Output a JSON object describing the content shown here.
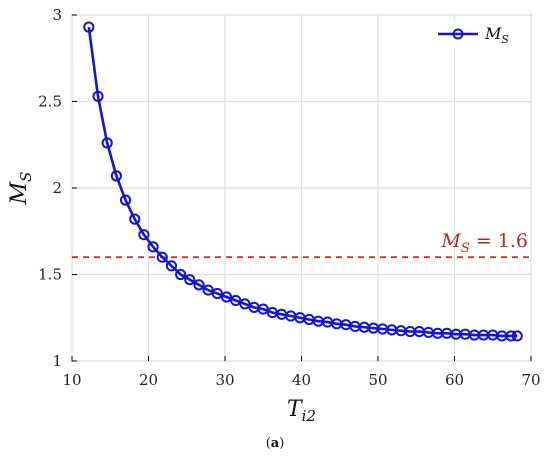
{
  "chart_data": {
    "type": "line",
    "xlabel": "T_i2",
    "xlabel_main": "T",
    "xlabel_sub": "i2",
    "ylabel": "M_S",
    "ylabel_main": "M",
    "ylabel_sub": "S",
    "xlim": [
      10,
      70
    ],
    "ylim": [
      1,
      3
    ],
    "x_ticks": [
      "10",
      "20",
      "30",
      "40",
      "50",
      "60",
      "70"
    ],
    "y_ticks": [
      "1",
      "1.5",
      "2",
      "2.5",
      "3"
    ],
    "grid": true,
    "legend_position": "top-right",
    "colors": {
      "series": "#1414d9",
      "threshold": "#c0392b"
    },
    "series": [
      {
        "name": "M_S",
        "legend_main": "M",
        "legend_sub": "S",
        "marker": "circle",
        "x": [
          12.2,
          13.4,
          14.6,
          15.8,
          17.0,
          18.2,
          19.4,
          20.6,
          21.8,
          23.0,
          24.2,
          25.4,
          26.6,
          27.8,
          29.0,
          30.2,
          31.4,
          32.6,
          33.8,
          35.0,
          36.2,
          37.4,
          38.6,
          39.8,
          41.0,
          42.2,
          43.4,
          44.6,
          45.8,
          47.0,
          48.2,
          49.4,
          50.6,
          51.8,
          53.0,
          54.2,
          55.4,
          56.6,
          57.8,
          59.0,
          60.2,
          61.4,
          62.6,
          63.8,
          65.0,
          66.2,
          67.4,
          68.2
        ],
        "y": [
          2.93,
          2.53,
          2.26,
          2.07,
          1.93,
          1.82,
          1.73,
          1.66,
          1.6,
          1.55,
          1.5,
          1.47,
          1.44,
          1.41,
          1.39,
          1.37,
          1.35,
          1.33,
          1.31,
          1.3,
          1.28,
          1.27,
          1.26,
          1.25,
          1.24,
          1.23,
          1.225,
          1.215,
          1.21,
          1.2,
          1.195,
          1.19,
          1.185,
          1.18,
          1.175,
          1.17,
          1.17,
          1.165,
          1.16,
          1.16,
          1.155,
          1.155,
          1.15,
          1.15,
          1.15,
          1.145,
          1.145,
          1.145
        ]
      }
    ],
    "threshold": {
      "y": 1.6,
      "label_main": "M",
      "label_sub": "S",
      "label_rest": " = 1.6",
      "style": "dashed"
    },
    "caption_open": "(",
    "caption_letter": "a",
    "caption_close": ")"
  }
}
